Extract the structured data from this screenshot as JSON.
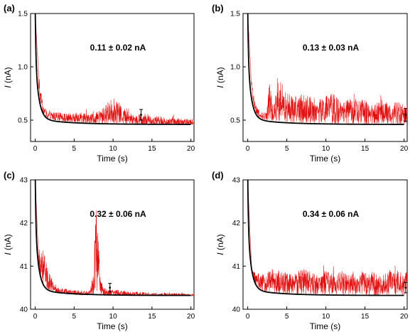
{
  "chart_data": [
    {
      "type": "line",
      "panel": "(a)",
      "annotation": "0.11 ± 0.02 nA",
      "xlabel": "Time (s)",
      "ylabel_italic": "I",
      "ylabel_rest": " (nA)",
      "xlim": [
        -0.6,
        20.4
      ],
      "ylim": [
        0.3,
        1.5
      ],
      "xticks": [
        0,
        5,
        10,
        15,
        20
      ],
      "xtick_labels": [
        "0",
        "5",
        "10",
        "15",
        "20"
      ],
      "yticks": [
        0.5,
        1.0,
        1.5
      ],
      "ytick_labels": [
        "0.5",
        "1.0",
        "1.5"
      ],
      "decay_baseline": 0.46,
      "decay_amplitude": 1.05,
      "errorbar": {
        "x": 13.6,
        "y": 0.55,
        "err": 0.05
      },
      "series": [
        {
          "color": "#e01010",
          "x": [
            0,
            0.5,
            1,
            1.5,
            2,
            3,
            4,
            5,
            6,
            7,
            8,
            9,
            9.5,
            10,
            10.5,
            11,
            12,
            13,
            14,
            15,
            16,
            17,
            18,
            19,
            20
          ],
          "y": [
            1.5,
            0.82,
            0.6,
            0.55,
            0.54,
            0.53,
            0.52,
            0.52,
            0.52,
            0.51,
            0.52,
            0.55,
            0.58,
            0.59,
            0.58,
            0.55,
            0.52,
            0.5,
            0.52,
            0.49,
            0.5,
            0.48,
            0.49,
            0.48,
            0.48
          ]
        },
        {
          "color": "#000000",
          "x": [
            0,
            0.5,
            1,
            1.5,
            2,
            3,
            4,
            5,
            6,
            8,
            10,
            12,
            14,
            16,
            18,
            20
          ],
          "y": [
            1.5,
            0.75,
            0.56,
            0.52,
            0.51,
            0.5,
            0.49,
            0.485,
            0.48,
            0.475,
            0.47,
            0.468,
            0.465,
            0.463,
            0.462,
            0.46
          ]
        }
      ]
    },
    {
      "type": "line",
      "panel": "(b)",
      "annotation": "0.13 ± 0.03 nA",
      "xlabel": "Time (s)",
      "ylabel_italic": "I",
      "ylabel_rest": " (nA)",
      "xlim": [
        -0.6,
        20.4
      ],
      "ylim": [
        0.3,
        1.5
      ],
      "xticks": [
        0,
        5,
        10,
        15,
        20
      ],
      "xtick_labels": [
        "0",
        "5",
        "10",
        "15",
        "20"
      ],
      "yticks": [
        0.5,
        1.0,
        1.5
      ],
      "ytick_labels": [
        "0.5",
        "1.0",
        "1.5"
      ],
      "decay_baseline": 0.46,
      "decay_amplitude": 1.05,
      "errorbar": {
        "x": 20.2,
        "y": 0.55,
        "err": 0.06
      },
      "series": [
        {
          "color": "#e01010",
          "x": [
            0,
            0.5,
            1,
            1.5,
            2,
            2.5,
            2.8,
            3.2,
            3.8,
            4,
            5,
            6,
            7,
            8,
            9,
            10,
            11,
            12,
            13,
            14,
            15,
            16,
            17,
            18,
            19,
            20
          ],
          "y": [
            1.5,
            0.8,
            0.6,
            0.55,
            0.53,
            0.56,
            0.72,
            0.55,
            0.66,
            0.64,
            0.62,
            0.6,
            0.61,
            0.6,
            0.58,
            0.6,
            0.61,
            0.56,
            0.58,
            0.57,
            0.58,
            0.55,
            0.58,
            0.56,
            0.57,
            0.55
          ]
        },
        {
          "color": "#000000",
          "x": [
            0,
            0.5,
            1,
            1.5,
            2,
            3,
            4,
            5,
            6,
            8,
            10,
            12,
            14,
            16,
            18,
            20
          ],
          "y": [
            1.5,
            0.75,
            0.56,
            0.52,
            0.51,
            0.5,
            0.49,
            0.485,
            0.48,
            0.475,
            0.47,
            0.468,
            0.465,
            0.463,
            0.462,
            0.46
          ]
        }
      ]
    },
    {
      "type": "line",
      "panel": "(c)",
      "annotation": "0.32 ± 0.06 nA",
      "xlabel": "Time (s)",
      "ylabel_italic": "I",
      "ylabel_rest": " (nA)",
      "xlim": [
        -0.6,
        20.4
      ],
      "ylim": [
        40,
        43
      ],
      "xticks": [
        0,
        5,
        10,
        15,
        20
      ],
      "xtick_labels": [
        "0",
        "5",
        "10",
        "15",
        "20"
      ],
      "yticks": [
        40,
        41,
        42,
        43
      ],
      "ytick_labels": [
        "40",
        "41",
        "42",
        "43"
      ],
      "decay_baseline": 40.32,
      "decay_amplitude": 2.7,
      "errorbar": {
        "x": 9.6,
        "y": 40.5,
        "err": 0.1
      },
      "series": [
        {
          "color": "#e01010",
          "x": [
            0,
            0.3,
            0.6,
            1,
            1.5,
            2,
            2.5,
            3,
            4,
            5,
            6,
            7,
            7.5,
            7.8,
            8.1,
            8.4,
            8.8,
            9.5,
            10,
            12,
            14,
            16,
            18,
            20
          ],
          "y": [
            43,
            41.3,
            41.2,
            41.0,
            40.75,
            40.6,
            40.45,
            40.42,
            40.4,
            40.38,
            40.37,
            40.36,
            40.6,
            41.6,
            41.0,
            40.5,
            40.4,
            40.38,
            40.38,
            40.35,
            40.34,
            40.33,
            40.33,
            40.32
          ]
        },
        {
          "color": "#000000",
          "x": [
            0,
            0.5,
            1,
            1.5,
            2,
            3,
            4,
            5,
            6,
            8,
            10,
            12,
            14,
            16,
            18,
            20
          ],
          "y": [
            43,
            40.9,
            40.6,
            40.48,
            40.42,
            40.38,
            40.36,
            40.35,
            40.34,
            40.33,
            40.33,
            40.32,
            40.32,
            40.32,
            40.32,
            40.32
          ]
        }
      ]
    },
    {
      "type": "line",
      "panel": "(d)",
      "annotation": "0.34 ± 0.06 nA",
      "xlabel": "Time (s)",
      "ylabel_italic": "I",
      "ylabel_rest": " (nA)",
      "xlim": [
        -0.6,
        20.4
      ],
      "ylim": [
        40,
        43
      ],
      "xticks": [
        0,
        5,
        10,
        15,
        20
      ],
      "xtick_labels": [
        "0",
        "5",
        "10",
        "15",
        "20"
      ],
      "yticks": [
        40,
        41,
        42,
        43
      ],
      "ytick_labels": [
        "40",
        "41",
        "42",
        "43"
      ],
      "decay_baseline": 40.32,
      "decay_amplitude": 2.7,
      "errorbar": {
        "x": 20.2,
        "y": 40.5,
        "err": 0.12
      },
      "series": [
        {
          "color": "#e01010",
          "x": [
            0,
            0.5,
            1,
            2,
            3,
            4,
            5,
            6,
            7,
            8,
            9,
            10,
            11,
            12,
            13,
            14,
            15,
            16,
            17,
            18,
            19,
            20
          ],
          "y": [
            43,
            40.9,
            40.7,
            40.6,
            40.65,
            40.62,
            40.6,
            40.58,
            40.65,
            40.6,
            40.55,
            40.62,
            40.58,
            40.6,
            40.55,
            40.65,
            40.58,
            40.6,
            40.55,
            40.62,
            40.58,
            40.6
          ]
        },
        {
          "color": "#000000",
          "x": [
            0,
            0.5,
            1,
            1.5,
            2,
            3,
            4,
            5,
            6,
            8,
            10,
            12,
            14,
            16,
            18,
            20
          ],
          "y": [
            43,
            40.9,
            40.6,
            40.48,
            40.42,
            40.38,
            40.36,
            40.35,
            40.34,
            40.33,
            40.33,
            40.32,
            40.32,
            40.32,
            40.32,
            40.32
          ]
        }
      ]
    }
  ]
}
